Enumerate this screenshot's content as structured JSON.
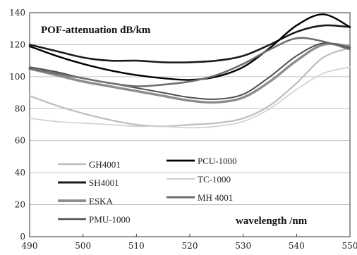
{
  "chart_data": {
    "type": "line",
    "title": "POF-attenuation dB/km",
    "xlabel": "wavelength /nm",
    "ylabel": "",
    "xlim": [
      490,
      550
    ],
    "ylim": [
      0,
      140
    ],
    "x_ticks": [
      490,
      500,
      510,
      520,
      530,
      540,
      550
    ],
    "y_ticks": [
      0,
      20,
      40,
      60,
      80,
      100,
      120,
      140
    ],
    "x_tick_labels": [
      "490",
      "500",
      "510",
      "520",
      "530",
      "540",
      "550"
    ],
    "y_tick_labels": [
      "0",
      "20",
      "40",
      "60",
      "80",
      "100",
      "120",
      "140"
    ],
    "grid": "horizontal",
    "legend_position": "bottom-left",
    "series": [
      {
        "name": "GH4001",
        "color": "#bdbdbd",
        "x": [
          490,
          495,
          500,
          505,
          510,
          515,
          520,
          525,
          530,
          535,
          540,
          545,
          550
        ],
        "y": [
          88,
          82,
          77,
          73,
          70,
          69,
          70,
          71,
          74,
          82,
          96,
          112,
          118
        ]
      },
      {
        "name": "SH4001",
        "color": "#1a1a1a",
        "x": [
          490,
          495,
          500,
          505,
          510,
          515,
          520,
          525,
          530,
          535,
          540,
          545,
          550
        ],
        "y": [
          120,
          116,
          112,
          110,
          110,
          109,
          109,
          110,
          113,
          120,
          128,
          132,
          131
        ]
      },
      {
        "name": "ESKA",
        "color": "#8c8c8c",
        "x": [
          490,
          495,
          500,
          505,
          510,
          515,
          520,
          525,
          530,
          535,
          540,
          545,
          550
        ],
        "y": [
          105,
          101,
          97,
          94,
          91,
          88,
          85,
          84,
          87,
          97,
          110,
          120,
          119
        ]
      },
      {
        "name": "PMU-1000",
        "color": "#4d4d4d",
        "x": [
          490,
          495,
          500,
          505,
          510,
          515,
          520,
          525,
          530,
          535,
          540,
          545,
          550
        ],
        "y": [
          106,
          103,
          99,
          96,
          93,
          90,
          87,
          86,
          89,
          100,
          113,
          121,
          118
        ]
      },
      {
        "name": "PCU-1000",
        "color": "#000000",
        "x": [
          490,
          495,
          500,
          505,
          510,
          515,
          520,
          525,
          530,
          535,
          540,
          545,
          550
        ],
        "y": [
          119,
          113,
          108,
          104,
          101,
          99,
          98,
          100,
          106,
          118,
          132,
          139,
          131
        ]
      },
      {
        "name": "TC-1000",
        "color": "#cfcfcf",
        "x": [
          490,
          495,
          500,
          505,
          510,
          515,
          520,
          525,
          530,
          535,
          540,
          545,
          550
        ],
        "y": [
          74,
          72,
          71,
          70,
          69,
          69,
          68,
          69,
          72,
          80,
          92,
          102,
          106
        ]
      },
      {
        "name": "MH 4001",
        "color": "#6e6e6e",
        "x": [
          490,
          495,
          500,
          505,
          510,
          515,
          520,
          525,
          530,
          535,
          540,
          545,
          550
        ],
        "y": [
          105,
          102,
          99,
          96,
          94,
          95,
          97,
          101,
          108,
          117,
          124,
          122,
          117
        ]
      }
    ]
  }
}
